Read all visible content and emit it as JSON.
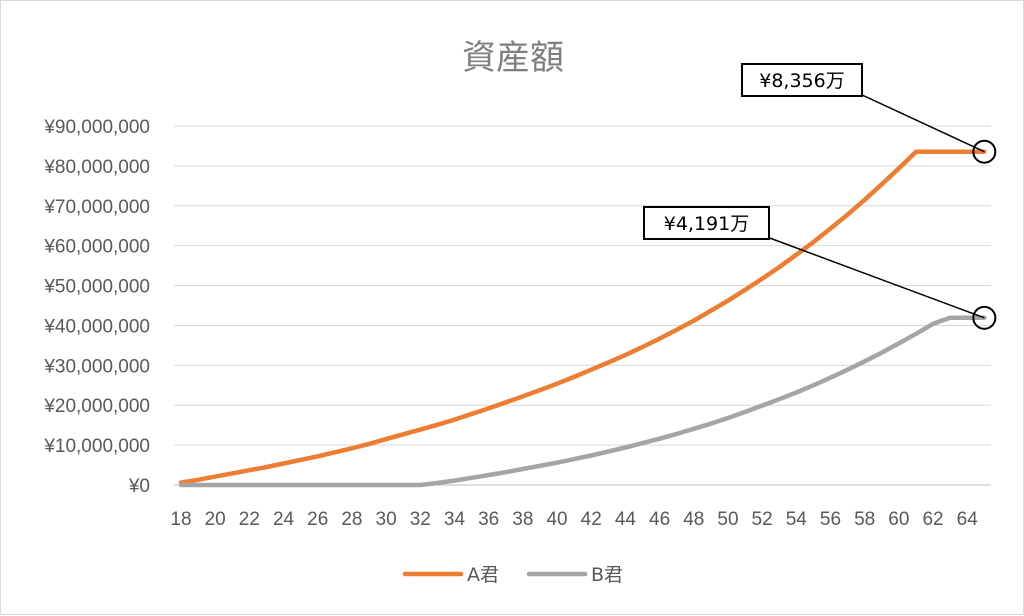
{
  "chart_data": {
    "type": "line",
    "title": "資産額",
    "xlabel": "",
    "ylabel": "",
    "x": [
      18,
      19,
      20,
      21,
      22,
      23,
      24,
      25,
      26,
      27,
      28,
      29,
      30,
      31,
      32,
      33,
      34,
      35,
      36,
      37,
      38,
      39,
      40,
      41,
      42,
      43,
      44,
      45,
      46,
      47,
      48,
      49,
      50,
      51,
      52,
      53,
      54,
      55,
      56,
      57,
      58,
      59,
      60,
      61,
      62,
      63,
      64,
      65
    ],
    "x_tick_labels": [
      "18",
      "20",
      "22",
      "24",
      "26",
      "28",
      "30",
      "32",
      "34",
      "36",
      "38",
      "40",
      "42",
      "44",
      "46",
      "48",
      "50",
      "52",
      "54",
      "56",
      "58",
      "60",
      "62",
      "64"
    ],
    "y_tick_labels": [
      "¥0",
      "¥10,000,000",
      "¥20,000,000",
      "¥30,000,000",
      "¥40,000,000",
      "¥50,000,000",
      "¥60,000,000",
      "¥70,000,000",
      "¥80,000,000",
      "¥90,000,000"
    ],
    "ylim": [
      0,
      90000000
    ],
    "grid": "horizontal",
    "legend_position": "bottom",
    "series": [
      {
        "name": "A君",
        "color": "#ed7d31",
        "values": [
          600000,
          1300000,
          2100000,
          2900000,
          3700000,
          4500000,
          5400000,
          6300000,
          7200000,
          8200000,
          9200000,
          10300000,
          11500000,
          12700000,
          13900000,
          15100000,
          16400000,
          17800000,
          19200000,
          20700000,
          22200000,
          23800000,
          25400000,
          27100000,
          28900000,
          30700000,
          32600000,
          34600000,
          36700000,
          38900000,
          41200000,
          43700000,
          46200000,
          48900000,
          51700000,
          54600000,
          57700000,
          60900000,
          64300000,
          67800000,
          71500000,
          75400000,
          79400000,
          83560000,
          83560000,
          83560000,
          83560000,
          83560000
        ]
      },
      {
        "name": "B君",
        "color": "#a5a5a5",
        "values": [
          0,
          0,
          0,
          0,
          0,
          0,
          0,
          0,
          0,
          0,
          0,
          0,
          0,
          0,
          0,
          500000,
          1100000,
          1800000,
          2500000,
          3200000,
          4000000,
          4800000,
          5600000,
          6500000,
          7400000,
          8400000,
          9400000,
          10500000,
          11600000,
          12800000,
          14100000,
          15400000,
          16800000,
          18300000,
          19900000,
          21500000,
          23200000,
          25000000,
          26900000,
          28900000,
          31000000,
          33200000,
          35500000,
          37900000,
          40400000,
          41910000,
          41910000,
          41910000
        ]
      }
    ],
    "annotations": [
      {
        "label": "¥8,356万",
        "series": "A君",
        "value": 83560000
      },
      {
        "label": "¥4,191万",
        "series": "B君",
        "value": 41910000
      }
    ]
  }
}
